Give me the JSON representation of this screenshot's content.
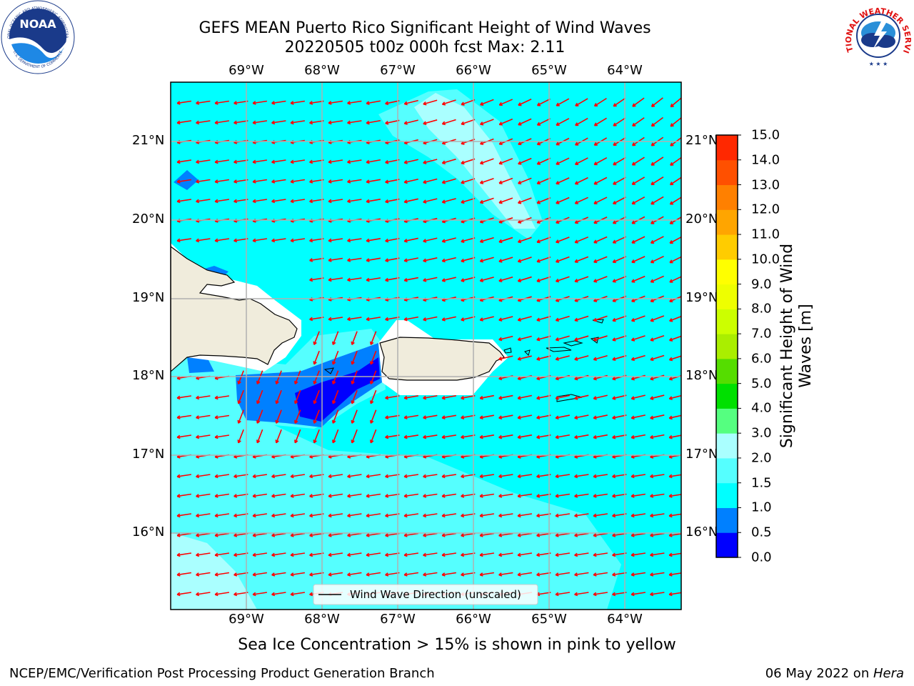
{
  "title": {
    "line1": "GEFS MEAN Puerto Rico Significant Height of Wind Waves",
    "line2": "20220505 t00z 000h fcst   Max: 2.11"
  },
  "logos": {
    "noaa_text": "NOAA",
    "noaa_ring_top": "NATIONAL OCEANIC AND ATMOSPHERIC ADMINISTRATION",
    "noaa_ring_bottom": "U.S. DEPARTMENT OF COMMERCE",
    "nws_ring": "NATIONAL WEATHER SERVICE"
  },
  "map": {
    "lon_ticks": [
      "69°W",
      "68°W",
      "67°W",
      "66°W",
      "65°W",
      "64°W"
    ],
    "lat_ticks": [
      "21°N",
      "20°N",
      "19°N",
      "18°N",
      "17°N",
      "16°N"
    ],
    "legend_label": "Wind Wave Direction (unscaled)",
    "arrow_color": "#ff0000",
    "land_color": "#f0ecdc",
    "ocean_base_color": "#00ffff"
  },
  "colorbar": {
    "label": "Significant Height of Wind Waves [m]",
    "ticks": [
      "0.0",
      "0.5",
      "1.0",
      "1.5",
      "2.0",
      "3.0",
      "4.0",
      "5.0",
      "6.0",
      "7.0",
      "8.0",
      "9.0",
      "10.0",
      "11.0",
      "12.0",
      "13.0",
      "14.0",
      "15.0"
    ],
    "colors": [
      "#0000ff",
      "#0080ff",
      "#00ffff",
      "#55ffff",
      "#aaffff",
      "#55ff80",
      "#00e000",
      "#55dd00",
      "#aaee00",
      "#ccff00",
      "#eeff00",
      "#ffff00",
      "#ffcc00",
      "#ffa500",
      "#ff8000",
      "#ff5000",
      "#ff2800",
      "#ff0000"
    ]
  },
  "note": "Sea Ice Concentration > 15% is shown in pink to yellow",
  "footer": {
    "left": "NCEP/EMC/Verification Post Processing Product Generation Branch",
    "date": "06 May 2022 on ",
    "machine": "Hera"
  }
}
